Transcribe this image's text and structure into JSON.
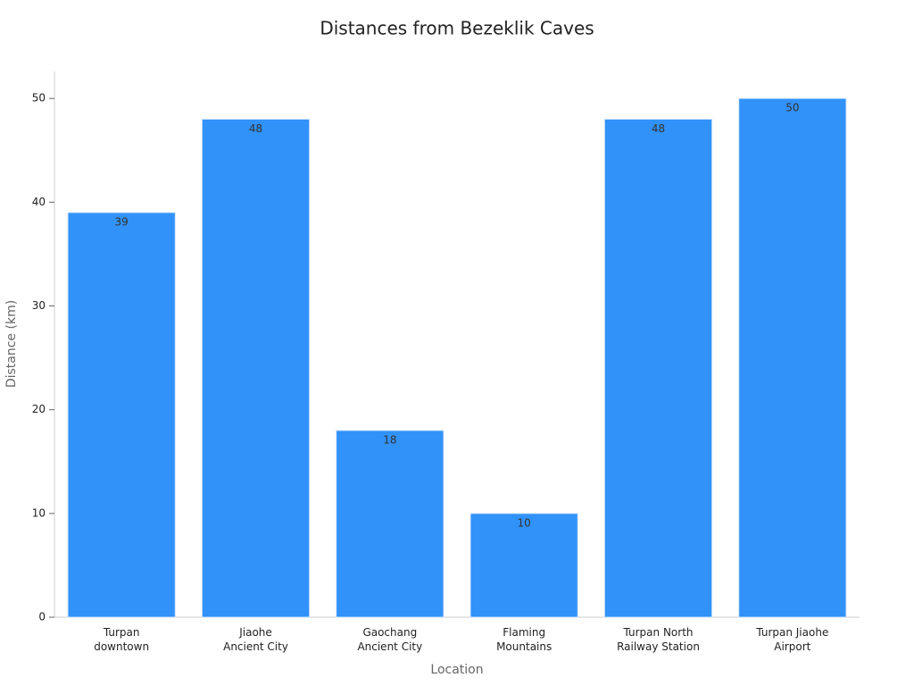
{
  "chart_data": {
    "type": "bar",
    "title": "Distances from Bezeklik Caves",
    "x_label": "Location",
    "y_label": "Distance (km)",
    "categories": [
      "Turpan\ndowntown",
      "Jiaohe\nAncient City",
      "Gaochang\nAncient City",
      "Flaming\nMountains",
      "Turpan North\nRailway Station",
      "Turpan Jiaohe\nAirport"
    ],
    "values": [
      39,
      48,
      18,
      10,
      48,
      50
    ],
    "color": "#3192f9",
    "ylim": [
      0,
      52.6
    ],
    "yticks": [
      0,
      10,
      20,
      30,
      40,
      50
    ],
    "grid": false
  }
}
